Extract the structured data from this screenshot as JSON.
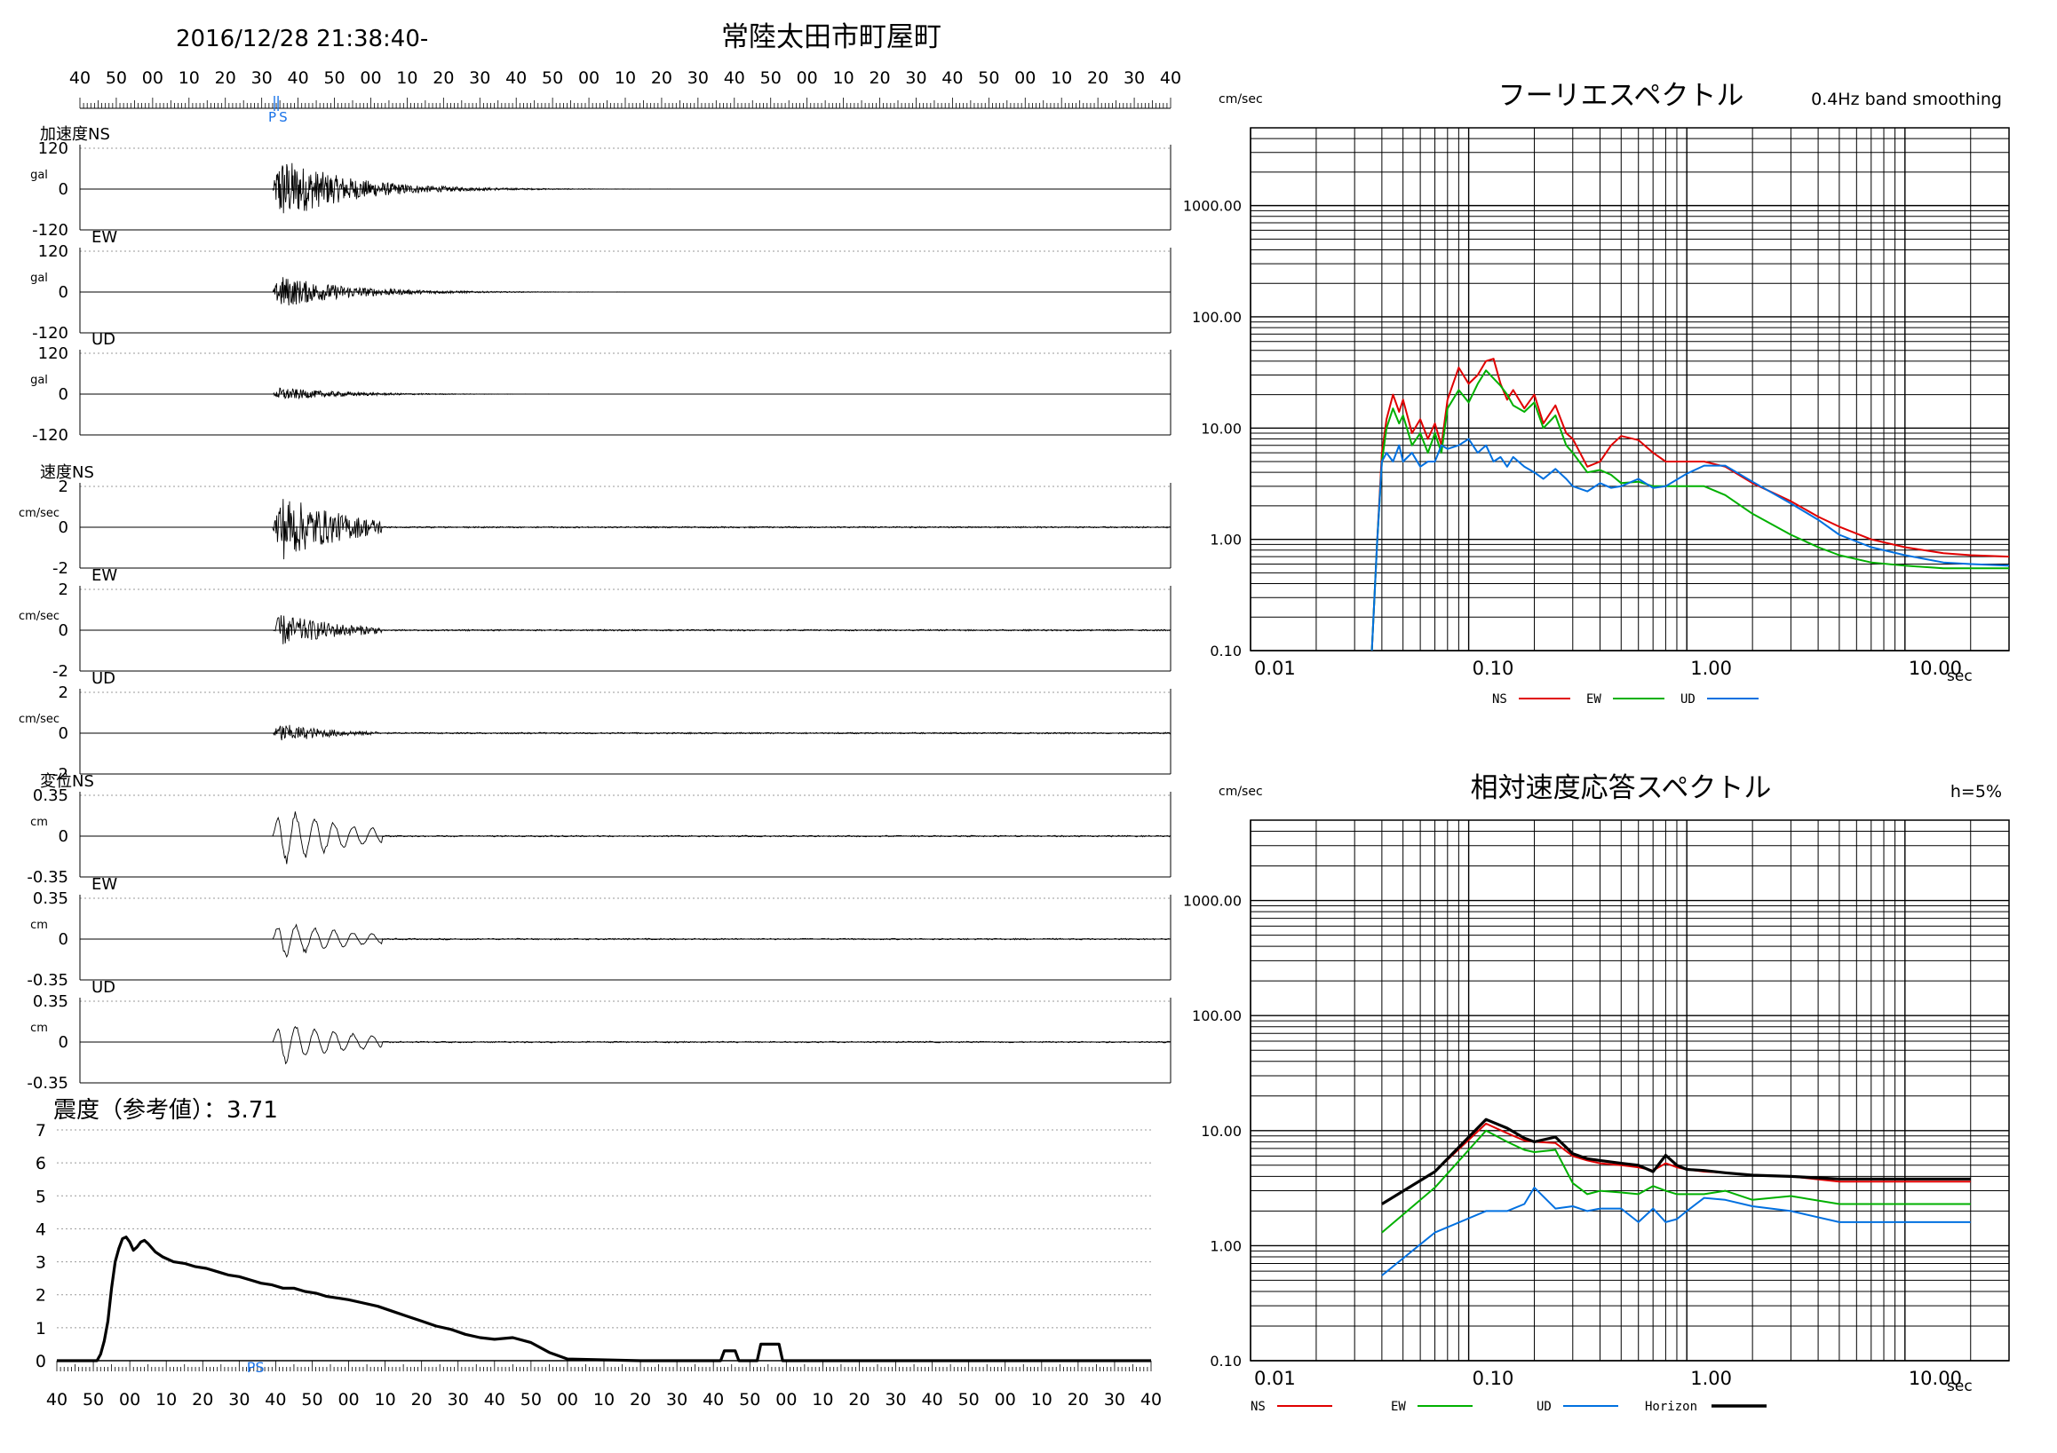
{
  "header": {
    "datetime": "2016/12/28 21:38:40-",
    "station": "常陸太田市町屋町"
  },
  "time_axis": {
    "top_labels": [
      "40",
      "50",
      "00",
      "10",
      "20",
      "30",
      "40",
      "50",
      "00",
      "10",
      "20",
      "30",
      "40",
      "50",
      "00",
      "10",
      "20",
      "30",
      "40",
      "50",
      "00",
      "10",
      "20",
      "30",
      "40",
      "50",
      "00",
      "10",
      "20",
      "30",
      "40"
    ],
    "bottom_labels": [
      "40",
      "50",
      "00",
      "10",
      "20",
      "30",
      "40",
      "50",
      "00",
      "10",
      "20",
      "30",
      "40",
      "50",
      "00",
      "10",
      "20",
      "30",
      "40",
      "50",
      "00",
      "10",
      "20",
      "30",
      "40",
      "50",
      "00",
      "10",
      "20",
      "30",
      "40"
    ],
    "p_label": "P",
    "s_label": "S",
    "ps_label": "PS",
    "p_time": 53.5,
    "s_time": 54.5
  },
  "waveform_panels": [
    {
      "group_label": "加速度NS",
      "unit": "gal",
      "max_label": "120",
      "zero_label": "0",
      "min_label": "-120",
      "scale": 120
    },
    {
      "group_label": "EW",
      "unit": "gal",
      "max_label": "120",
      "zero_label": "0",
      "min_label": "-120",
      "scale": 120
    },
    {
      "group_label": "UD",
      "unit": "gal",
      "max_label": "120",
      "zero_label": "0",
      "min_label": "-120",
      "scale": 120
    },
    {
      "group_label": "速度NS",
      "unit": "cm/sec",
      "max_label": "2",
      "zero_label": "0",
      "min_label": "-2",
      "scale": 2
    },
    {
      "group_label": "EW",
      "unit": "cm/sec",
      "max_label": "2",
      "zero_label": "0",
      "min_label": "-2",
      "scale": 2
    },
    {
      "group_label": "UD",
      "unit": "cm/sec",
      "max_label": "2",
      "zero_label": "0",
      "min_label": "-2",
      "scale": 2
    },
    {
      "group_label": "変位NS",
      "unit": "cm",
      "max_label": "0.35",
      "zero_label": "0",
      "min_label": "-0.35",
      "scale": 0.35
    },
    {
      "group_label": "EW",
      "unit": "cm",
      "max_label": "0.35",
      "zero_label": "0",
      "min_label": "-0.35",
      "scale": 0.35
    },
    {
      "group_label": "UD",
      "unit": "cm",
      "max_label": "0.35",
      "zero_label": "0",
      "min_label": "-0.35",
      "scale": 0.35
    }
  ],
  "intensity": {
    "label": "震度（参考値）：3.71",
    "y_labels": [
      "7",
      "6",
      "5",
      "4",
      "3",
      "2",
      "1",
      "0"
    ]
  },
  "fourier": {
    "title": "フーリエスペクトル",
    "note": "0.4Hz band smoothing",
    "y_unit": "cm/sec",
    "x_unit": "sec",
    "y_labels": [
      "1000.00",
      "100.00",
      "10.00",
      "1.00",
      "0.10"
    ],
    "x_labels": [
      "0.01",
      "0.10",
      "1.00",
      "10.00"
    ],
    "legend": [
      {
        "name": "NS",
        "color": "#e00000"
      },
      {
        "name": "EW",
        "color": "#00b000"
      },
      {
        "name": "UD",
        "color": "#0070e0"
      }
    ]
  },
  "response": {
    "title": "相対速度応答スペクトル",
    "note": "h=5%",
    "y_unit": "cm/sec",
    "x_unit": "sec",
    "y_labels": [
      "1000.00",
      "100.00",
      "10.00",
      "1.00",
      "0.10"
    ],
    "x_labels": [
      "0.01",
      "0.10",
      "1.00",
      "10.00"
    ],
    "legend": [
      {
        "name": "NS",
        "color": "#e00000"
      },
      {
        "name": "EW",
        "color": "#00b000"
      },
      {
        "name": "UD",
        "color": "#0070e0"
      },
      {
        "name": "Horizon",
        "color": "#000000"
      }
    ]
  },
  "chart_data": [
    {
      "type": "line",
      "id": "seismic-intensity",
      "title": "震度（参考値）：3.71",
      "xlabel": "",
      "ylabel": "",
      "xlim": [
        0,
        300
      ],
      "ylim": [
        0,
        7
      ],
      "x_note": "seconds after 21:38:40",
      "x": [
        0,
        11,
        12,
        13,
        14,
        15,
        16,
        17,
        18,
        19,
        20,
        21,
        22,
        23,
        24,
        25,
        27,
        29,
        32,
        35,
        38,
        41,
        44,
        47,
        50,
        53,
        56,
        59,
        62,
        65,
        68,
        71,
        74,
        77,
        80,
        84,
        88,
        92,
        96,
        100,
        104,
        108,
        112,
        116,
        120,
        125,
        130,
        135,
        140,
        160,
        170,
        182,
        183,
        186,
        187,
        192,
        193,
        198,
        199,
        252,
        253,
        258,
        259,
        300
      ],
      "series": [
        {
          "name": "",
          "values": [
            0,
            0,
            0.2,
            0.6,
            1.2,
            2.2,
            3.0,
            3.4,
            3.7,
            3.75,
            3.6,
            3.35,
            3.45,
            3.6,
            3.65,
            3.55,
            3.3,
            3.15,
            3.0,
            2.95,
            2.85,
            2.8,
            2.7,
            2.6,
            2.55,
            2.45,
            2.35,
            2.3,
            2.2,
            2.2,
            2.1,
            2.05,
            1.95,
            1.9,
            1.85,
            1.75,
            1.65,
            1.5,
            1.35,
            1.2,
            1.05,
            0.95,
            0.8,
            0.7,
            0.65,
            0.7,
            0.55,
            0.25,
            0.05,
            0,
            0,
            0,
            0.3,
            0.3,
            0,
            0,
            0.5,
            0.5,
            0,
            0,
            0,
            0,
            0,
            0
          ]
        }
      ]
    },
    {
      "type": "line",
      "id": "fourier-spectrum",
      "title": "フーリエスペクトル",
      "xlabel": "sec",
      "ylabel": "cm/sec",
      "x_scale": "log",
      "y_scale": "log",
      "xlim": [
        0.01,
        30
      ],
      "ylim": [
        0.1,
        5000
      ],
      "x": [
        0.036,
        0.038,
        0.04,
        0.042,
        0.045,
        0.048,
        0.05,
        0.055,
        0.06,
        0.065,
        0.07,
        0.075,
        0.08,
        0.09,
        0.1,
        0.11,
        0.12,
        0.13,
        0.14,
        0.15,
        0.16,
        0.18,
        0.2,
        0.22,
        0.25,
        0.28,
        0.3,
        0.35,
        0.4,
        0.45,
        0.5,
        0.6,
        0.7,
        0.8,
        1.0,
        1.2,
        1.5,
        2,
        3,
        4,
        5,
        7,
        10,
        15,
        20,
        30
      ],
      "series": [
        {
          "name": "NS",
          "values": [
            0.1,
            0.9,
            6,
            12,
            20,
            14,
            18,
            9,
            12,
            8,
            11,
            7,
            18,
            35,
            25,
            30,
            40,
            42,
            25,
            18,
            22,
            15,
            20,
            11,
            16,
            9,
            8,
            4.5,
            5,
            7,
            8.5,
            7.8,
            6,
            5,
            5,
            5,
            4.5,
            3.2,
            2.2,
            1.6,
            1.3,
            1.0,
            0.85,
            0.75,
            0.72,
            0.7
          ]
        },
        {
          "name": "EW",
          "values": [
            0.1,
            0.9,
            5,
            10,
            15,
            11,
            13,
            7,
            9,
            6,
            9,
            6,
            15,
            22,
            17,
            25,
            33,
            28,
            24,
            20,
            16,
            14,
            17,
            10,
            13,
            7,
            6,
            4,
            4.2,
            3.8,
            3.2,
            3.3,
            3,
            3,
            3,
            3,
            2.5,
            1.7,
            1.1,
            0.85,
            0.72,
            0.62,
            0.58,
            0.55,
            0.55,
            0.55
          ]
        },
        {
          "name": "UD",
          "values": [
            0.1,
            0.9,
            5,
            6,
            5,
            7,
            5,
            6,
            4.5,
            5,
            5,
            7,
            6.5,
            7,
            8,
            6,
            7,
            5,
            5.5,
            4.5,
            5.5,
            4.5,
            4,
            3.5,
            4.3,
            3.5,
            3,
            2.7,
            3.2,
            2.9,
            3,
            3.5,
            2.9,
            3,
            3.9,
            4.6,
            4.6,
            3.3,
            2.1,
            1.5,
            1.1,
            0.85,
            0.72,
            0.62,
            0.6,
            0.58
          ]
        }
      ]
    },
    {
      "type": "line",
      "id": "response-spectrum",
      "title": "相対速度応答スペクトル",
      "xlabel": "sec",
      "ylabel": "cm/sec",
      "x_scale": "log",
      "y_scale": "log",
      "xlim": [
        0.01,
        30
      ],
      "ylim": [
        0.1,
        5000
      ],
      "x": [
        0.04,
        0.07,
        0.12,
        0.15,
        0.18,
        0.2,
        0.25,
        0.3,
        0.35,
        0.4,
        0.5,
        0.6,
        0.7,
        0.8,
        0.9,
        1.0,
        1.2,
        1.5,
        2,
        3,
        5,
        10,
        20
      ],
      "series": [
        {
          "name": "NS",
          "values": [
            2.3,
            4.4,
            11.5,
            9.5,
            8.2,
            8,
            7.8,
            6,
            5.5,
            5.2,
            5,
            4.8,
            4.5,
            5.2,
            4.8,
            4.6,
            4.4,
            4.3,
            4.1,
            4,
            3.6,
            3.6,
            3.6
          ]
        },
        {
          "name": "EW",
          "values": [
            1.3,
            3.2,
            10,
            8,
            6.8,
            6.5,
            6.8,
            3.5,
            2.8,
            3,
            2.9,
            2.8,
            3.3,
            3,
            2.8,
            2.8,
            2.8,
            3,
            2.5,
            2.7,
            2.3,
            2.3,
            2.3
          ]
        },
        {
          "name": "UD",
          "values": [
            0.55,
            1.3,
            2.0,
            2.0,
            2.3,
            3.2,
            2.1,
            2.2,
            2.0,
            2.1,
            2.1,
            1.6,
            2.1,
            1.6,
            1.7,
            2.0,
            2.6,
            2.5,
            2.2,
            2.0,
            1.6,
            1.6,
            1.6
          ]
        },
        {
          "name": "Horizon",
          "values": [
            2.3,
            4.4,
            12.5,
            10.5,
            8.6,
            8.0,
            8.8,
            6.3,
            5.7,
            5.5,
            5.2,
            5.0,
            4.4,
            6.1,
            5.0,
            4.6,
            4.5,
            4.3,
            4.1,
            4.0,
            3.8,
            3.8,
            3.8
          ]
        }
      ]
    }
  ]
}
